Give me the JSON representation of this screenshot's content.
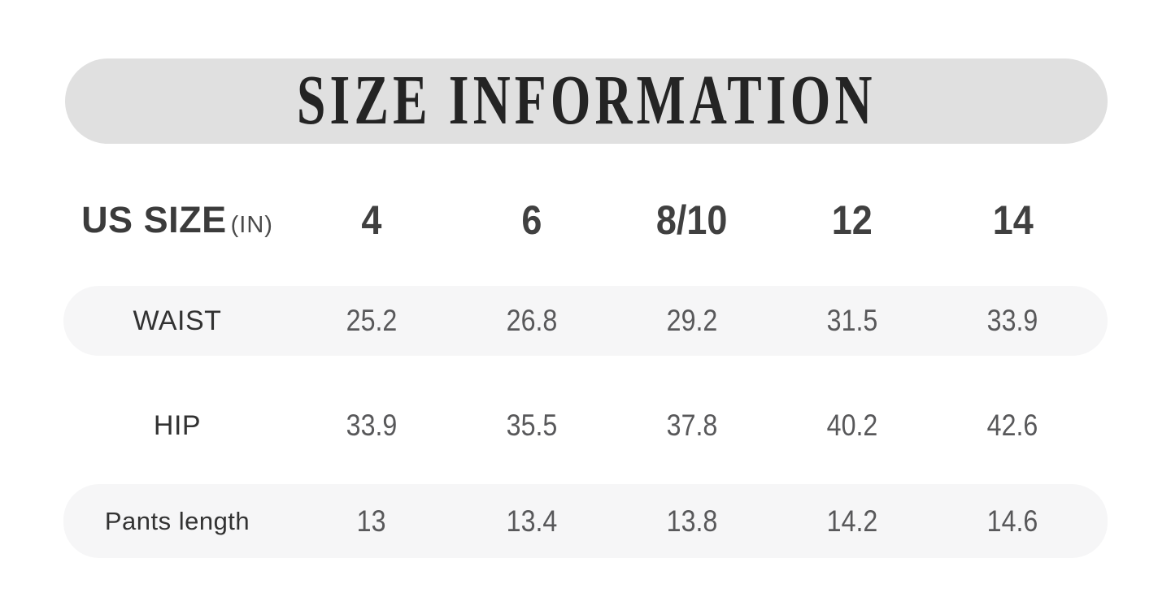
{
  "title_banner": {
    "text": "SIZE INFORMATION",
    "bg": "#e0e0e0",
    "text_color": "#242424"
  },
  "size_table": {
    "header": {
      "label": "US SIZE",
      "unit_note": "(IN)",
      "columns": [
        "4",
        "6",
        "8/10",
        "12",
        "14"
      ]
    },
    "rows": [
      {
        "label": "WAIST",
        "shaded": true,
        "values": [
          "25.2",
          "26.8",
          "29.2",
          "31.5",
          "33.9"
        ]
      },
      {
        "label": "HIP",
        "shaded": false,
        "values": [
          "33.9",
          "35.5",
          "37.8",
          "40.2",
          "42.6"
        ]
      },
      {
        "label": "Pants length",
        "shaded": true,
        "values": [
          "13",
          "13.4",
          "13.8",
          "14.2",
          "14.6"
        ]
      }
    ],
    "shaded_row_bg": "#f6f6f7"
  },
  "chart_data": {
    "type": "table",
    "title": "SIZE INFORMATION",
    "unit": "IN",
    "columns": [
      "US SIZE (IN)",
      "4",
      "6",
      "8/10",
      "12",
      "14"
    ],
    "rows": [
      [
        "WAIST",
        25.2,
        26.8,
        29.2,
        31.5,
        33.9
      ],
      [
        "HIP",
        33.9,
        35.5,
        37.8,
        40.2,
        42.6
      ],
      [
        "Pants length",
        13,
        13.4,
        13.8,
        14.2,
        14.6
      ]
    ]
  }
}
